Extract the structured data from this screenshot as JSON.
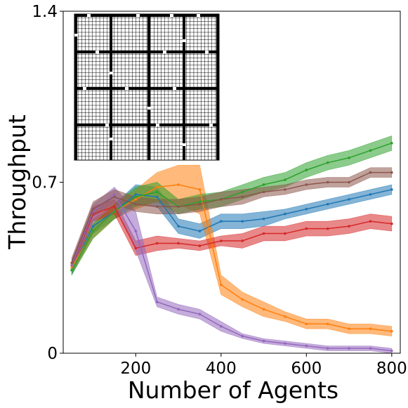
{
  "chart_data": {
    "type": "line",
    "xlabel": "Number of Agents",
    "ylabel": "Throughput",
    "xlim": [
      30,
      820
    ],
    "ylim": [
      0,
      1.4
    ],
    "xticks": [
      200,
      400,
      600,
      800
    ],
    "yticks": [
      0,
      0.7,
      1.4
    ],
    "ytick_labels": [
      "0",
      "0.7",
      "1.4"
    ],
    "grid": false,
    "legend": "none",
    "inset": "grid-map warehouse layout (top-left)",
    "x": [
      50,
      100,
      150,
      200,
      250,
      300,
      350,
      400,
      450,
      500,
      550,
      600,
      650,
      700,
      750,
      800
    ],
    "series": [
      {
        "color": "#1f77b4",
        "values": [
          0.34,
          0.52,
          0.58,
          0.65,
          0.64,
          0.52,
          0.5,
          0.54,
          0.54,
          0.55,
          0.57,
          0.59,
          0.61,
          0.63,
          0.65,
          0.67
        ],
        "band": [
          0.02,
          0.03,
          0.03,
          0.04,
          0.04,
          0.03,
          0.03,
          0.03,
          0.03,
          0.03,
          0.02,
          0.02,
          0.02,
          0.02,
          0.02,
          0.02
        ]
      },
      {
        "color": "#ff7f0e",
        "values": [
          0.35,
          0.5,
          0.58,
          0.63,
          0.68,
          0.69,
          0.67,
          0.28,
          0.22,
          0.18,
          0.15,
          0.12,
          0.12,
          0.1,
          0.1,
          0.09
        ],
        "band": [
          0.02,
          0.03,
          0.03,
          0.04,
          0.06,
          0.08,
          0.1,
          0.04,
          0.03,
          0.03,
          0.02,
          0.02,
          0.02,
          0.02,
          0.02,
          0.02
        ]
      },
      {
        "color": "#2ca02c",
        "values": [
          0.34,
          0.5,
          0.58,
          0.64,
          0.66,
          0.6,
          0.62,
          0.63,
          0.66,
          0.69,
          0.71,
          0.75,
          0.78,
          0.8,
          0.83,
          0.86
        ],
        "band": [
          0.02,
          0.03,
          0.03,
          0.04,
          0.04,
          0.03,
          0.03,
          0.03,
          0.03,
          0.03,
          0.03,
          0.03,
          0.03,
          0.03,
          0.03,
          0.03
        ]
      },
      {
        "color": "#d62728",
        "values": [
          0.36,
          0.57,
          0.6,
          0.43,
          0.45,
          0.45,
          0.44,
          0.46,
          0.46,
          0.49,
          0.49,
          0.51,
          0.51,
          0.52,
          0.54,
          0.53
        ],
        "band": [
          0.02,
          0.03,
          0.03,
          0.03,
          0.03,
          0.02,
          0.02,
          0.02,
          0.03,
          0.03,
          0.03,
          0.03,
          0.03,
          0.03,
          0.03,
          0.03
        ]
      },
      {
        "color": "#9467bd",
        "values": [
          0.36,
          0.58,
          0.65,
          0.5,
          0.21,
          0.18,
          0.16,
          0.11,
          0.07,
          0.05,
          0.04,
          0.03,
          0.02,
          0.02,
          0.02,
          0.01
        ],
        "band": [
          0.02,
          0.03,
          0.03,
          0.08,
          0.02,
          0.02,
          0.02,
          0.02,
          0.01,
          0.01,
          0.01,
          0.01,
          0.01,
          0.01,
          0.01,
          0.01
        ]
      },
      {
        "color": "#8c564b",
        "values": [
          0.37,
          0.59,
          0.64,
          0.61,
          0.6,
          0.6,
          0.61,
          0.63,
          0.64,
          0.66,
          0.67,
          0.69,
          0.7,
          0.7,
          0.74,
          0.74
        ],
        "band": [
          0.02,
          0.03,
          0.03,
          0.03,
          0.03,
          0.03,
          0.03,
          0.03,
          0.03,
          0.02,
          0.02,
          0.02,
          0.02,
          0.02,
          0.02,
          0.02
        ]
      }
    ]
  }
}
